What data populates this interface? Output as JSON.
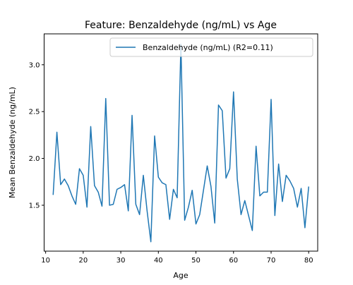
{
  "chart_data": {
    "type": "line",
    "title": "Feature: Benzaldehyde (ng/mL) vs Age",
    "xlabel": "Age",
    "ylabel": "Mean Benzaldehyde (ng/mL)",
    "xlim": [
      9.6,
      82.4
    ],
    "ylim": [
      1.01,
      3.33
    ],
    "xticks": [
      10,
      20,
      30,
      40,
      50,
      60,
      70,
      80
    ],
    "xtick_labels": [
      "10",
      "20",
      "30",
      "40",
      "50",
      "60",
      "70",
      "80"
    ],
    "yticks": [
      1.5,
      2.0,
      2.5,
      3.0
    ],
    "ytick_labels": [
      "1.5",
      "2.0",
      "2.5",
      "3.0"
    ],
    "grid": false,
    "legend_position": "top-right",
    "colors": {
      "line": "#1f77b4",
      "axes": "#000000"
    },
    "series": [
      {
        "name": "Benzaldehyde (ng/mL) (R2=0.11)",
        "x": [
          12,
          13,
          14,
          15,
          16,
          17,
          18,
          19,
          20,
          21,
          22,
          23,
          24,
          25,
          26,
          27,
          28,
          29,
          30,
          31,
          32,
          33,
          34,
          35,
          36,
          37,
          38,
          39,
          40,
          41,
          42,
          43,
          44,
          45,
          46,
          47,
          48,
          49,
          50,
          51,
          52,
          53,
          54,
          55,
          56,
          57,
          58,
          59,
          60,
          61,
          62,
          63,
          64,
          65,
          66,
          67,
          68,
          69,
          70,
          71,
          72,
          73,
          74,
          75,
          76,
          77,
          78,
          79,
          80
        ],
        "y": [
          1.61,
          2.28,
          1.72,
          1.78,
          1.71,
          1.6,
          1.51,
          1.89,
          1.82,
          1.48,
          2.34,
          1.71,
          1.64,
          1.49,
          2.64,
          1.5,
          1.51,
          1.67,
          1.69,
          1.72,
          1.44,
          2.46,
          1.51,
          1.4,
          1.82,
          1.44,
          1.11,
          2.24,
          1.8,
          1.74,
          1.72,
          1.35,
          1.67,
          1.58,
          3.22,
          1.34,
          1.48,
          1.66,
          1.3,
          1.4,
          1.66,
          1.92,
          1.7,
          1.31,
          2.57,
          2.51,
          1.79,
          1.89,
          2.71,
          1.78,
          1.4,
          1.55,
          1.39,
          1.23,
          2.13,
          1.6,
          1.64,
          1.64,
          2.63,
          1.39,
          1.94,
          1.54,
          1.82,
          1.76,
          1.68,
          1.48,
          1.68,
          1.26,
          1.7
        ]
      }
    ]
  }
}
